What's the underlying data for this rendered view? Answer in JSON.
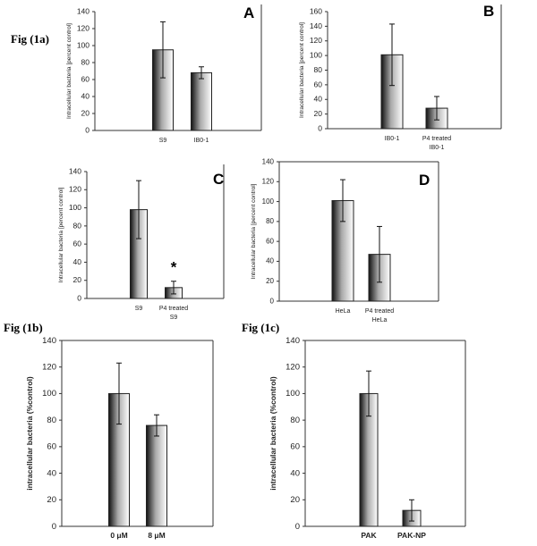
{
  "figure_labels": [
    "Fig (1a)",
    "Fig (1b)",
    "Fig (1c)"
  ],
  "chart_data": [
    {
      "type": "bar",
      "panel": "A",
      "ylabel": "Intracellular bacteria [percent control]",
      "ylim": [
        0,
        140
      ],
      "yticks": [
        0,
        20,
        40,
        60,
        80,
        100,
        120,
        140
      ],
      "categories": [
        [
          "S9"
        ],
        [
          "IB0-1"
        ]
      ],
      "values": [
        95,
        68
      ],
      "errors": [
        33,
        7
      ],
      "annotations": []
    },
    {
      "type": "bar",
      "panel": "B",
      "ylabel": "Intracellular bacteria [percent control]",
      "ylim": [
        0,
        160
      ],
      "yticks": [
        0,
        20,
        40,
        60,
        80,
        100,
        120,
        140,
        160
      ],
      "categories": [
        [
          "IB0-1"
        ],
        [
          "P4 treated",
          "IB0-1"
        ]
      ],
      "values": [
        101,
        28
      ],
      "errors": [
        42,
        16
      ],
      "annotations": []
    },
    {
      "type": "bar",
      "panel": "C",
      "ylabel": "Intracellular bacteria [percent control]",
      "ylim": [
        0,
        140
      ],
      "yticks": [
        0,
        20,
        40,
        60,
        80,
        100,
        120,
        140
      ],
      "categories": [
        [
          "S9"
        ],
        [
          "P4 treated",
          "S9"
        ]
      ],
      "values": [
        98,
        12
      ],
      "errors": [
        32,
        7
      ],
      "annotations": [
        "*"
      ]
    },
    {
      "type": "bar",
      "panel": "D",
      "ylabel": "Intracellular bacteria [percent control]",
      "ylim": [
        0,
        140
      ],
      "yticks": [
        0,
        20,
        40,
        60,
        80,
        100,
        120,
        140
      ],
      "categories": [
        [
          "HeLa"
        ],
        [
          "P4 treated",
          "HeLa"
        ]
      ],
      "values": [
        101,
        47
      ],
      "errors": [
        21,
        28
      ],
      "annotations": []
    },
    {
      "type": "bar",
      "panel": "",
      "ylabel": "intracellular bacteria (%control)",
      "ylim": [
        0,
        140
      ],
      "yticks": [
        0,
        20,
        40,
        60,
        80,
        100,
        120,
        140
      ],
      "categories": [
        [
          "0 μM"
        ],
        [
          "8 μM"
        ]
      ],
      "values": [
        100,
        76
      ],
      "errors": [
        23,
        8
      ],
      "annotations": []
    },
    {
      "type": "bar",
      "panel": "",
      "ylabel": "intracellular bacteria (%control)",
      "ylim": [
        0,
        140
      ],
      "yticks": [
        0,
        20,
        40,
        60,
        80,
        100,
        120,
        140
      ],
      "categories": [
        [
          "PAK"
        ],
        [
          "PAK-NP"
        ]
      ],
      "values": [
        100,
        12
      ],
      "errors": [
        17,
        8
      ],
      "annotations": []
    }
  ]
}
